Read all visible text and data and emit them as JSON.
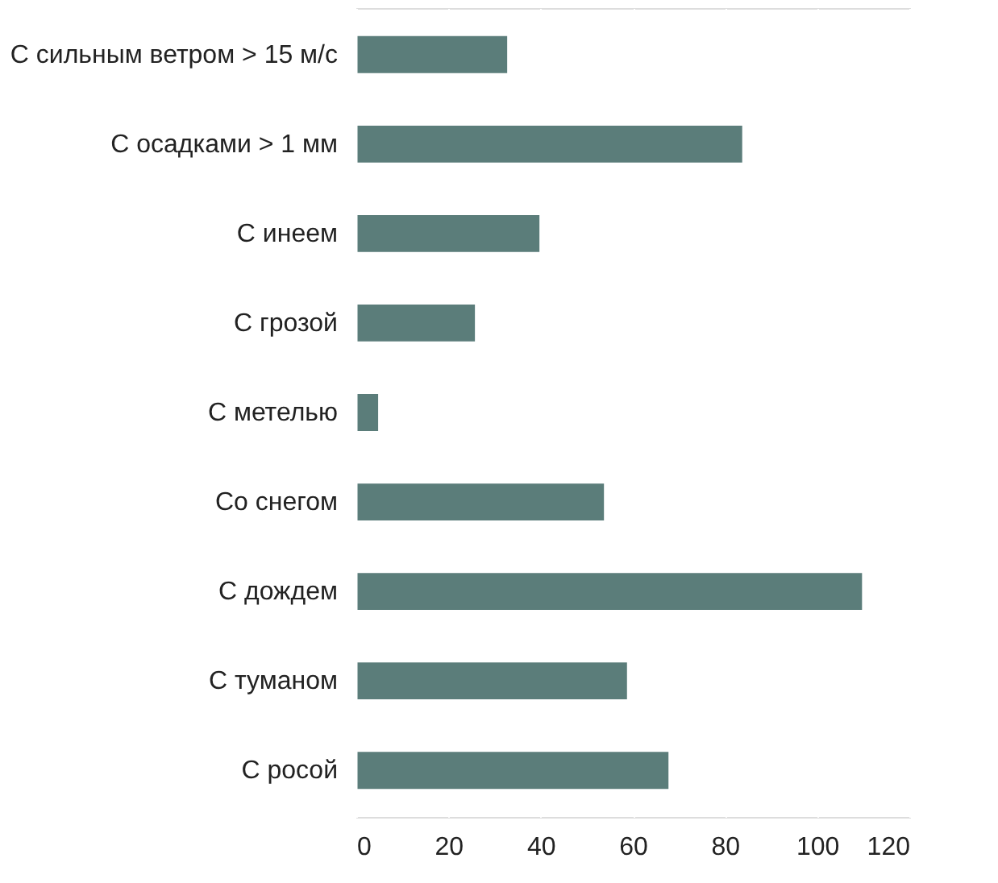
{
  "chart_data": {
    "type": "bar",
    "orientation": "horizontal",
    "categories": [
      "С сильным ветром > 15 м/с",
      "С осадками > 1 мм",
      "С инеем",
      "С грозой",
      "С метелью",
      "Со снегом",
      "С дождем",
      "С туманом",
      "С росой"
    ],
    "values": [
      33,
      84,
      40,
      26,
      5,
      54,
      110,
      59,
      68
    ],
    "color": "#5b7d7a",
    "xlim": [
      0,
      120
    ],
    "xticks": [
      0,
      20,
      40,
      60,
      80,
      100,
      120
    ],
    "grid": "x"
  }
}
